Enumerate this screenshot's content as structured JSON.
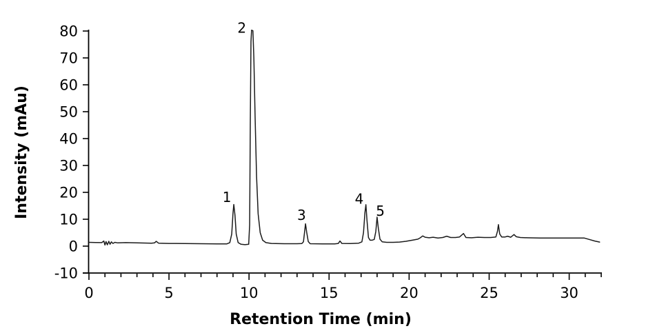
{
  "figure": {
    "background": "#ffffff",
    "axis_color": "#000000",
    "trace_color": "#1a1a1a",
    "text_color": "#000000"
  },
  "chart_data": {
    "type": "line",
    "title": "",
    "xlabel": "Retention Time (min)",
    "ylabel": "Intensity (mAu)",
    "xlim": [
      0,
      32
    ],
    "ylim": [
      -10,
      80
    ],
    "x_major_ticks": [
      0,
      5,
      10,
      15,
      20,
      25,
      30
    ],
    "x_minor_tick_interval": 1,
    "y_ticks": [
      -10,
      0,
      10,
      20,
      30,
      40,
      50,
      60,
      70,
      80
    ],
    "grid": false,
    "legend": false,
    "peaks": [
      {
        "label": "1",
        "retention_time_min": 9.05,
        "intensity_mau": 15.5,
        "label_pos": [
          8.62,
          18.2
        ]
      },
      {
        "label": "2",
        "retention_time_min": 10.2,
        "intensity_mau": 80,
        "clipped_at_axis_max": true,
        "label_pos": [
          9.55,
          81.2
        ]
      },
      {
        "label": "3",
        "retention_time_min": 13.5,
        "intensity_mau": 8.3,
        "label_pos": [
          13.28,
          11.6
        ]
      },
      {
        "label": "4",
        "retention_time_min": 17.3,
        "intensity_mau": 15.4,
        "label_pos": [
          16.88,
          17.6
        ]
      },
      {
        "label": "5",
        "retention_time_min": 18.0,
        "intensity_mau": 10.8,
        "label_pos": [
          18.2,
          13.1
        ]
      }
    ],
    "series": [
      {
        "name": "chromatogram-trace",
        "points": [
          [
            0,
            1.4
          ],
          [
            0.4,
            1.35
          ],
          [
            0.8,
            1.3
          ],
          [
            0.93,
            1.9
          ],
          [
            1.0,
            0.4
          ],
          [
            1.07,
            1.7
          ],
          [
            1.15,
            0.5
          ],
          [
            1.24,
            1.8
          ],
          [
            1.32,
            0.7
          ],
          [
            1.4,
            1.6
          ],
          [
            1.5,
            1.0
          ],
          [
            1.62,
            1.4
          ],
          [
            1.8,
            1.2
          ],
          [
            2.3,
            1.3
          ],
          [
            3.0,
            1.2
          ],
          [
            3.9,
            1.1
          ],
          [
            4.1,
            1.2
          ],
          [
            4.2,
            1.8
          ],
          [
            4.35,
            1.1
          ],
          [
            5.0,
            1.0
          ],
          [
            6.0,
            0.95
          ],
          [
            7.0,
            0.9
          ],
          [
            8.0,
            0.85
          ],
          [
            8.62,
            0.85
          ],
          [
            8.8,
            1.3
          ],
          [
            8.92,
            4.5
          ],
          [
            9.0,
            12.5
          ],
          [
            9.05,
            15.5
          ],
          [
            9.12,
            11.5
          ],
          [
            9.2,
            4.5
          ],
          [
            9.32,
            1.3
          ],
          [
            9.5,
            0.7
          ],
          [
            9.75,
            0.55
          ],
          [
            9.98,
            0.7
          ],
          [
            10.04,
            8
          ],
          [
            10.08,
            45
          ],
          [
            10.12,
            76
          ],
          [
            10.16,
            80.3
          ],
          [
            10.24,
            80.1
          ],
          [
            10.3,
            70
          ],
          [
            10.38,
            48
          ],
          [
            10.47,
            26
          ],
          [
            10.57,
            12
          ],
          [
            10.7,
            5
          ],
          [
            10.85,
            2.2
          ],
          [
            11.05,
            1.3
          ],
          [
            11.4,
            1.0
          ],
          [
            12.2,
            0.9
          ],
          [
            13.0,
            0.9
          ],
          [
            13.3,
            0.95
          ],
          [
            13.4,
            1.6
          ],
          [
            13.48,
            5.8
          ],
          [
            13.53,
            8.3
          ],
          [
            13.6,
            5.2
          ],
          [
            13.7,
            1.7
          ],
          [
            13.82,
            0.9
          ],
          [
            14.6,
            0.85
          ],
          [
            15.35,
            0.85
          ],
          [
            15.58,
            1.0
          ],
          [
            15.68,
            1.9
          ],
          [
            15.8,
            1.0
          ],
          [
            16.3,
            0.95
          ],
          [
            16.85,
            1.1
          ],
          [
            17.05,
            1.6
          ],
          [
            17.15,
            5
          ],
          [
            17.24,
            12.5
          ],
          [
            17.3,
            15.4
          ],
          [
            17.37,
            9.5
          ],
          [
            17.46,
            3.2
          ],
          [
            17.56,
            2.2
          ],
          [
            17.68,
            2.2
          ],
          [
            17.82,
            2.5
          ],
          [
            17.92,
            5.5
          ],
          [
            18.0,
            10.8
          ],
          [
            18.08,
            6.5
          ],
          [
            18.18,
            2.6
          ],
          [
            18.32,
            1.6
          ],
          [
            18.6,
            1.4
          ],
          [
            19.0,
            1.4
          ],
          [
            19.4,
            1.5
          ],
          [
            19.8,
            1.8
          ],
          [
            20.2,
            2.2
          ],
          [
            20.55,
            2.6
          ],
          [
            20.7,
            3.1
          ],
          [
            20.85,
            3.8
          ],
          [
            21.0,
            3.3
          ],
          [
            21.25,
            3.1
          ],
          [
            21.5,
            3.3
          ],
          [
            21.8,
            3.0
          ],
          [
            22.1,
            3.2
          ],
          [
            22.35,
            3.7
          ],
          [
            22.6,
            3.2
          ],
          [
            22.9,
            3.2
          ],
          [
            23.15,
            3.4
          ],
          [
            23.4,
            4.7
          ],
          [
            23.55,
            3.2
          ],
          [
            23.9,
            3.1
          ],
          [
            24.3,
            3.3
          ],
          [
            24.7,
            3.2
          ],
          [
            25.1,
            3.2
          ],
          [
            25.42,
            3.4
          ],
          [
            25.52,
            5.5
          ],
          [
            25.58,
            8.0
          ],
          [
            25.66,
            4.5
          ],
          [
            25.78,
            3.4
          ],
          [
            26.0,
            3.4
          ],
          [
            26.15,
            3.7
          ],
          [
            26.35,
            3.3
          ],
          [
            26.55,
            4.3
          ],
          [
            26.7,
            3.5
          ],
          [
            26.95,
            3.2
          ],
          [
            27.4,
            3.1
          ],
          [
            28.2,
            3.0
          ],
          [
            29.2,
            3.0
          ],
          [
            30.2,
            3.0
          ],
          [
            30.95,
            3.0
          ],
          [
            31.25,
            2.5
          ],
          [
            31.6,
            1.9
          ],
          [
            31.9,
            1.5
          ]
        ]
      }
    ]
  }
}
